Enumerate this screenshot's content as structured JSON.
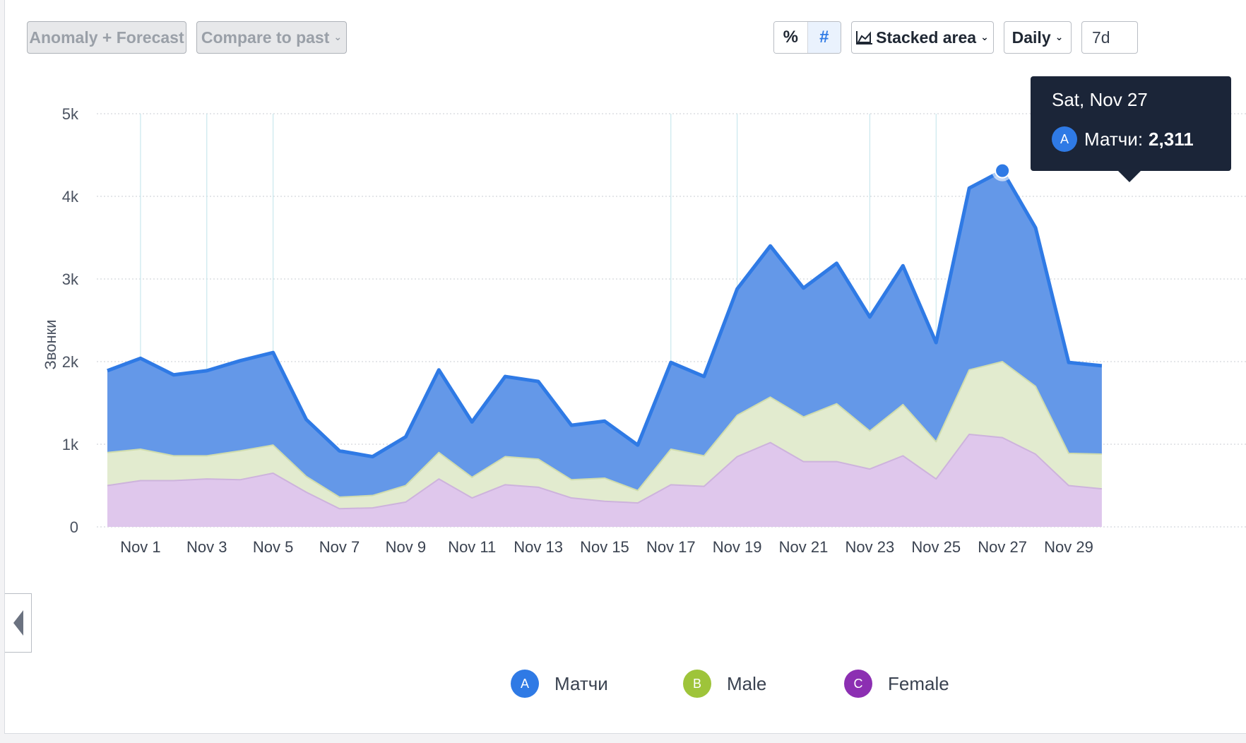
{
  "toolbar": {
    "anomaly_label": "Anomaly + Forecast",
    "compare_label": "Compare to past",
    "percent_label": "%",
    "number_label": "#",
    "chart_type_label": "Stacked area",
    "interval_label": "Daily",
    "range_label": "7d"
  },
  "tooltip": {
    "date": "Sat, Nov 27",
    "badge": "A",
    "series": "Матчи:",
    "value": "2,311"
  },
  "colors": {
    "matchi": "#2f7ae5",
    "matchi_fill": "#6498e8",
    "male": "#9ec43a",
    "male_fill": "#e2ebcf",
    "female": "#8c2fb2",
    "female_fill": "#dfc7ec"
  },
  "chart_data": {
    "type": "area",
    "stacked": true,
    "ylabel": "Звонки",
    "ylim": [
      0,
      5000
    ],
    "yticks": [
      "0",
      "1k",
      "2k",
      "3k",
      "4k",
      "5k"
    ],
    "x_tick_labels": [
      "Nov 1",
      "Nov 3",
      "Nov 5",
      "Nov 7",
      "Nov 9",
      "Nov 11",
      "Nov 13",
      "Nov 15",
      "Nov 17",
      "Nov 19",
      "Nov 21",
      "Nov 23",
      "Nov 25",
      "Nov 27",
      "Nov 29"
    ],
    "x": [
      "Oct 31",
      "Nov 1",
      "Nov 2",
      "Nov 3",
      "Nov 4",
      "Nov 5",
      "Nov 6",
      "Nov 7",
      "Nov 8",
      "Nov 9",
      "Nov 10",
      "Nov 11",
      "Nov 12",
      "Nov 13",
      "Nov 14",
      "Nov 15",
      "Nov 16",
      "Nov 17",
      "Nov 18",
      "Nov 19",
      "Nov 20",
      "Nov 21",
      "Nov 22",
      "Nov 23",
      "Nov 24",
      "Nov 25",
      "Nov 26",
      "Nov 27",
      "Nov 28",
      "Nov 29",
      "Nov 30"
    ],
    "series": [
      {
        "name": "Female",
        "letter": "C",
        "values": [
          500,
          560,
          560,
          580,
          570,
          650,
          420,
          220,
          230,
          300,
          580,
          350,
          510,
          480,
          350,
          310,
          290,
          510,
          490,
          850,
          1020,
          790,
          790,
          700,
          860,
          580,
          1120,
          1080,
          880,
          500,
          460
        ]
      },
      {
        "name": "Male",
        "letter": "B",
        "values": [
          400,
          380,
          300,
          280,
          350,
          340,
          190,
          140,
          150,
          200,
          320,
          250,
          340,
          340,
          220,
          280,
          150,
          430,
          370,
          500,
          550,
          540,
          700,
          460,
          620,
          450,
          780,
          920,
          820,
          390,
          420
        ]
      },
      {
        "name": "Матчи",
        "letter": "A",
        "values": [
          990,
          1100,
          980,
          1030,
          1090,
          1120,
          690,
          560,
          470,
          590,
          1000,
          670,
          970,
          940,
          660,
          690,
          550,
          1050,
          960,
          1530,
          1830,
          1560,
          1700,
          1380,
          1680,
          1200,
          2200,
          2311,
          1920,
          1100,
          1070
        ]
      }
    ]
  },
  "legend": [
    {
      "letter": "A",
      "name": "Матчи"
    },
    {
      "letter": "B",
      "name": "Male"
    },
    {
      "letter": "C",
      "name": "Female"
    }
  ]
}
